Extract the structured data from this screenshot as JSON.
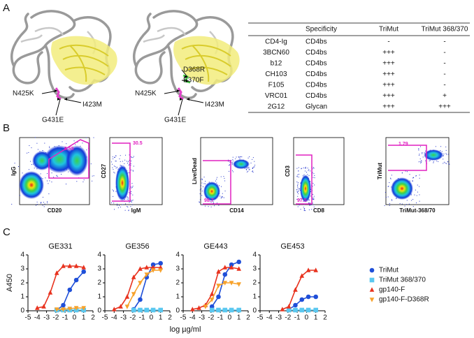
{
  "panel_labels": [
    "A",
    "B",
    "C"
  ],
  "structures": [
    {
      "labels": [
        "N425K",
        "G431E",
        "I423M"
      ]
    },
    {
      "labels": [
        "D368R",
        "E370F",
        "N425K",
        "G431E",
        "I423M"
      ]
    }
  ],
  "table": {
    "columns": [
      "Specificity",
      "TriMut",
      "TriMut 368/370"
    ],
    "rows": [
      [
        "CD4-Ig",
        "CD4bs",
        "-",
        "-"
      ],
      [
        "3BCN60",
        "CD4bs",
        "+++",
        "-"
      ],
      [
        "b12",
        "CD4bs",
        "+++",
        "-"
      ],
      [
        "CH103",
        "CD4bs",
        "+++",
        "-"
      ],
      [
        "F105",
        "CD4bs",
        "+++",
        "-"
      ],
      [
        "VRC01",
        "CD4bs",
        "+++",
        "+"
      ],
      [
        "2G12",
        "Glycan",
        "+++",
        "+++"
      ]
    ]
  },
  "flow": [
    {
      "x_label": "CD20",
      "y_label": "IgG",
      "gate": "5.55"
    },
    {
      "x_label": "IgM",
      "y_label": "CD27",
      "gate": "30.5"
    },
    {
      "x_label": "CD14",
      "y_label": "Live/Dead",
      "gate": "98.7"
    },
    {
      "x_label": "CD8",
      "y_label": "CD3",
      "gate": "97.5"
    },
    {
      "x_label": "TriMut-368/70",
      "y_label": "TriMut",
      "gate": "1.79"
    }
  ],
  "chart_data": [
    {
      "type": "line",
      "title": "GE331",
      "y_label": "A450",
      "x_label": "log µg/ml",
      "x": [
        -4,
        -3.3,
        -2.6,
        -1.9,
        -1.2,
        -0.5,
        0.2,
        1
      ],
      "xlim": [
        -5,
        2
      ],
      "xticks": [
        -5,
        -4,
        -3,
        -2,
        -1,
        0,
        1,
        2
      ],
      "ylim": [
        0,
        4
      ],
      "yticks": [
        0,
        1,
        2,
        3,
        4
      ],
      "series": [
        {
          "name": "TriMut",
          "color": "#1f4fd8",
          "marker": "circle",
          "values": [
            null,
            null,
            null,
            0.05,
            0.4,
            1.5,
            2.2,
            2.8
          ]
        },
        {
          "name": "TriMut 368/370",
          "color": "#5bc8f0",
          "marker": "square",
          "values": [
            null,
            null,
            null,
            0.05,
            0.05,
            0.05,
            0.05,
            0.05
          ]
        },
        {
          "name": "gp140-F",
          "color": "#e8321e",
          "marker": "triangle-up",
          "values": [
            0.2,
            0.3,
            1.3,
            2.7,
            3.2,
            3.2,
            3.2,
            3.1
          ]
        },
        {
          "name": "gp140-F-D368R",
          "color": "#f7a22b",
          "marker": "triangle-down",
          "values": [
            null,
            null,
            null,
            0.1,
            0.1,
            0.15,
            0.2,
            0.2
          ]
        }
      ]
    },
    {
      "type": "line",
      "title": "GE356",
      "x": [
        -4,
        -3.3,
        -2.6,
        -1.9,
        -1.2,
        -0.5,
        0.2,
        1
      ],
      "xlim": [
        -5,
        2
      ],
      "xticks": [
        -5,
        -4,
        -3,
        -2,
        -1,
        0,
        1,
        2
      ],
      "ylim": [
        0,
        4
      ],
      "yticks": [
        0,
        1,
        2,
        3,
        4
      ],
      "series": [
        {
          "color": "#1f4fd8",
          "marker": "circle",
          "values": [
            null,
            null,
            null,
            0.1,
            0.8,
            2.4,
            3.3,
            3.4
          ]
        },
        {
          "color": "#5bc8f0",
          "marker": "square",
          "values": [
            null,
            null,
            null,
            0.05,
            0.05,
            0.05,
            0.05,
            0.05
          ]
        },
        {
          "color": "#e8321e",
          "marker": "triangle-up",
          "values": [
            0.1,
            0.3,
            1.0,
            2.4,
            3.0,
            3.1,
            3.1,
            3.1
          ]
        },
        {
          "color": "#f7a22b",
          "marker": "triangle-down",
          "values": [
            null,
            null,
            0.3,
            1.2,
            2.0,
            2.6,
            2.9,
            2.9
          ]
        }
      ]
    },
    {
      "type": "line",
      "title": "GE443",
      "x": [
        -4,
        -3.3,
        -2.6,
        -1.9,
        -1.2,
        -0.5,
        0.2,
        1
      ],
      "xlim": [
        -5,
        2
      ],
      "xticks": [
        -5,
        -4,
        -3,
        -2,
        -1,
        0,
        1,
        2
      ],
      "ylim": [
        0,
        4
      ],
      "yticks": [
        0,
        1,
        2,
        3,
        4
      ],
      "series": [
        {
          "color": "#1f4fd8",
          "marker": "circle",
          "values": [
            null,
            null,
            null,
            0.3,
            1.0,
            2.6,
            3.3,
            3.5
          ]
        },
        {
          "color": "#5bc8f0",
          "marker": "square",
          "values": [
            null,
            null,
            null,
            0.05,
            0.05,
            0.05,
            0.05,
            0.05
          ]
        },
        {
          "color": "#e8321e",
          "marker": "triangle-up",
          "values": [
            0.1,
            0.2,
            0.4,
            1.2,
            2.8,
            3.1,
            3.1,
            3.0
          ]
        },
        {
          "color": "#f7a22b",
          "marker": "triangle-down",
          "values": [
            null,
            null,
            0.3,
            0.8,
            1.8,
            2.0,
            2.0,
            1.9
          ]
        }
      ]
    },
    {
      "type": "line",
      "title": "GE453",
      "x": [
        -4,
        -3.3,
        -2.6,
        -1.9,
        -1.2,
        -0.5,
        0.2,
        1
      ],
      "xlim": [
        -5,
        2
      ],
      "xticks": [
        -5,
        -4,
        -3,
        -2,
        -1,
        0,
        1,
        2
      ],
      "ylim": [
        0,
        4
      ],
      "yticks": [
        0,
        1,
        2,
        3,
        4
      ],
      "series": [
        {
          "color": "#1f4fd8",
          "marker": "circle",
          "values": [
            null,
            null,
            null,
            0.1,
            0.4,
            0.8,
            1.0,
            1.0
          ]
        },
        {
          "color": "#5bc8f0",
          "marker": "square",
          "values": [
            null,
            null,
            null,
            0.05,
            0.05,
            0.05,
            0.05,
            0.05
          ]
        },
        {
          "color": "#e8321e",
          "marker": "triangle-up",
          "values": [
            null,
            null,
            0.1,
            0.3,
            1.5,
            2.5,
            2.9,
            2.9
          ]
        }
      ]
    }
  ]
}
